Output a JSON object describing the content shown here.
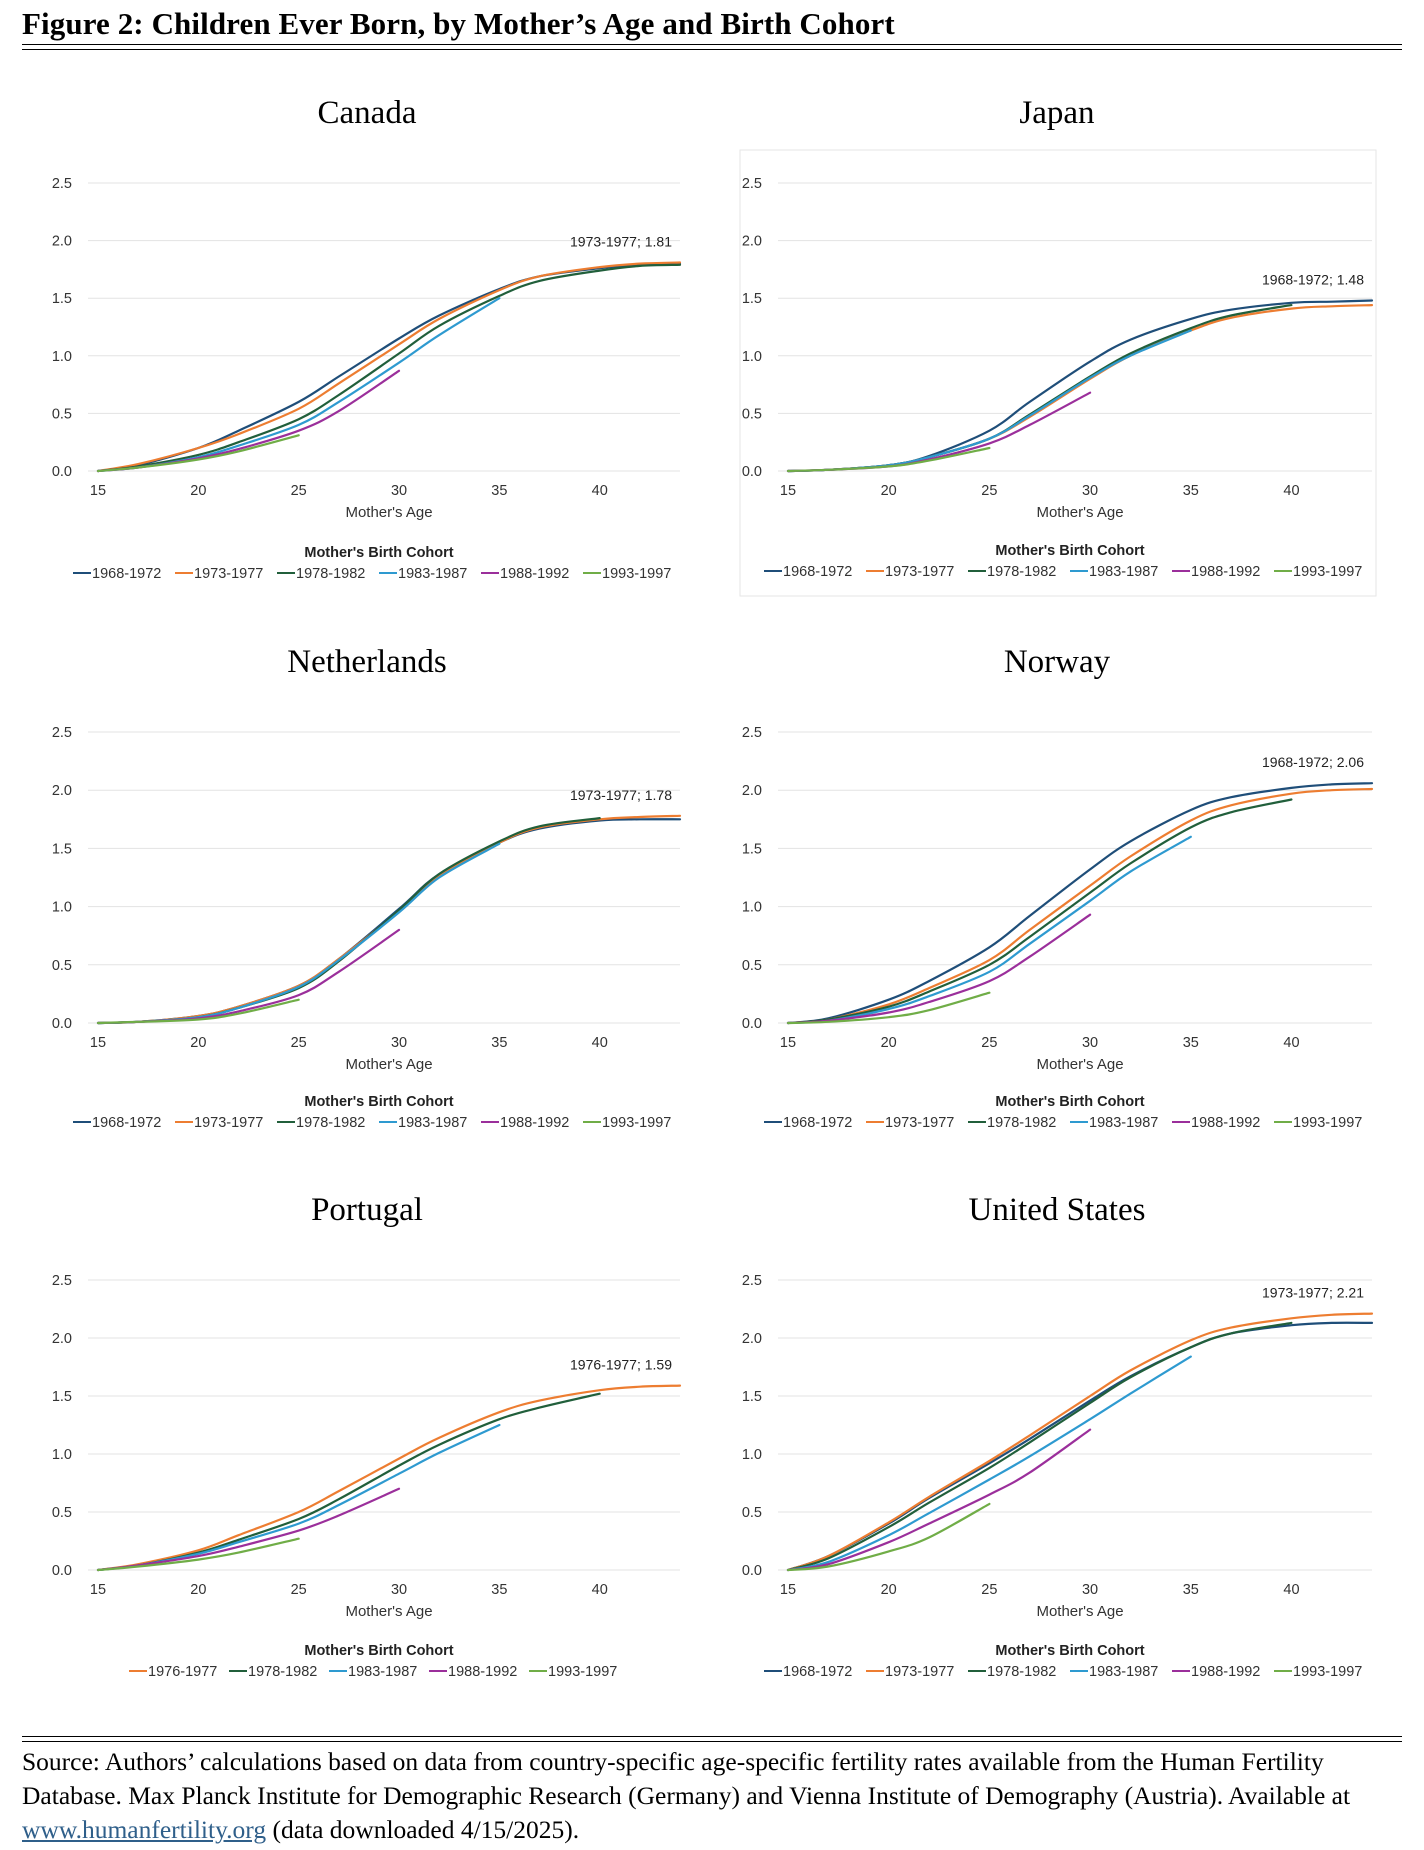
{
  "figure": {
    "title": "Figure 2: Children Ever Born, by Mother’s Age and Birth Cohort",
    "source_text": "Source: Authors’ calculations based on data from country-specific age-specific fertility rates available from the Human Fertility Database. Max Planck Institute for Demographic Research (Germany) and Vienna Institute of Demography (Austria). Available at",
    "source_link": "www.humanfertility.org",
    "source_tail": "(data downloaded 4/15/2025)."
  },
  "colors": {
    "1968-1972": "#1f4e79",
    "1973-1977": "#ed7d31",
    "1976-1977": "#ed7d31",
    "1978-1982": "#215f3b",
    "1983-1987": "#2e9ad0",
    "1988-1992": "#9b2f9b",
    "1993-1997": "#70ad47"
  },
  "chart_data": [
    {
      "type": "line",
      "title": "Canada",
      "xlabel": "Mother's Age",
      "ylabel": "",
      "xlim": [
        15,
        44
      ],
      "ylim": [
        0,
        2.5
      ],
      "x_ticks": [
        15,
        20,
        25,
        30,
        35,
        40
      ],
      "y_ticks": [
        "0.0",
        "0.5",
        "1.0",
        "1.5",
        "2.0",
        "2.5"
      ],
      "grid": true,
      "legend_title": "Mother's Birth Cohort",
      "legend_position": "bottom",
      "annotation": {
        "text": "1973-1977; 1.81",
        "x": 44,
        "y": 1.81
      },
      "series": [
        {
          "name": "1968-1972",
          "x": [
            15,
            17,
            20,
            22,
            25,
            27,
            30,
            32,
            35,
            37,
            40,
            42,
            44
          ],
          "y": [
            0,
            0.05,
            0.2,
            0.35,
            0.6,
            0.82,
            1.15,
            1.35,
            1.58,
            1.69,
            1.76,
            1.79,
            1.8
          ]
        },
        {
          "name": "1973-1977",
          "x": [
            15,
            17,
            20,
            22,
            25,
            27,
            30,
            32,
            35,
            37,
            40,
            42,
            44
          ],
          "y": [
            0,
            0.06,
            0.2,
            0.32,
            0.54,
            0.76,
            1.1,
            1.32,
            1.57,
            1.69,
            1.77,
            1.8,
            1.81
          ]
        },
        {
          "name": "1978-1982",
          "x": [
            15,
            17,
            20,
            22,
            25,
            27,
            30,
            32,
            35,
            37,
            40,
            42,
            44
          ],
          "y": [
            0,
            0.04,
            0.14,
            0.25,
            0.45,
            0.66,
            1.02,
            1.26,
            1.52,
            1.65,
            1.74,
            1.78,
            1.79
          ]
        },
        {
          "name": "1983-1987",
          "x": [
            15,
            17,
            20,
            22,
            25,
            27,
            30,
            32,
            35
          ],
          "y": [
            0,
            0.03,
            0.12,
            0.22,
            0.4,
            0.6,
            0.94,
            1.18,
            1.5
          ]
        },
        {
          "name": "1988-1992",
          "x": [
            15,
            17,
            20,
            22,
            25,
            27,
            30
          ],
          "y": [
            0,
            0.03,
            0.11,
            0.19,
            0.35,
            0.52,
            0.87
          ]
        },
        {
          "name": "1993-1997",
          "x": [
            15,
            17,
            20,
            22,
            25
          ],
          "y": [
            0,
            0.03,
            0.1,
            0.17,
            0.31
          ]
        }
      ]
    },
    {
      "type": "line",
      "title": "Japan",
      "xlabel": "Mother's Age",
      "ylabel": "",
      "xlim": [
        15,
        44
      ],
      "ylim": [
        0,
        2.5
      ],
      "x_ticks": [
        15,
        20,
        25,
        30,
        35,
        40
      ],
      "y_ticks": [
        "0.0",
        "0.5",
        "1.0",
        "1.5",
        "2.0",
        "2.5"
      ],
      "grid": true,
      "legend_title": "Mother's Birth Cohort",
      "legend_position": "bottom",
      "annotation": {
        "text": "1968-1972; 1.48",
        "x": 44,
        "y": 1.48
      },
      "series": [
        {
          "name": "1968-1972",
          "x": [
            15,
            17,
            20,
            22,
            25,
            27,
            30,
            32,
            35,
            37,
            40,
            42,
            44
          ],
          "y": [
            0,
            0.01,
            0.05,
            0.13,
            0.35,
            0.6,
            0.95,
            1.14,
            1.32,
            1.4,
            1.46,
            1.47,
            1.48
          ]
        },
        {
          "name": "1973-1977",
          "x": [
            15,
            17,
            20,
            22,
            25,
            27,
            30,
            32,
            35,
            37,
            40,
            42,
            44
          ],
          "y": [
            0,
            0.01,
            0.05,
            0.12,
            0.28,
            0.47,
            0.8,
            1.0,
            1.22,
            1.33,
            1.41,
            1.43,
            1.44
          ]
        },
        {
          "name": "1978-1982",
          "x": [
            15,
            17,
            20,
            22,
            25,
            27,
            30,
            32,
            35,
            37,
            40
          ],
          "y": [
            0,
            0.01,
            0.05,
            0.12,
            0.28,
            0.49,
            0.82,
            1.02,
            1.24,
            1.35,
            1.44
          ]
        },
        {
          "name": "1983-1987",
          "x": [
            15,
            17,
            20,
            22,
            25,
            27,
            30,
            32,
            35
          ],
          "y": [
            0,
            0.01,
            0.05,
            0.12,
            0.28,
            0.48,
            0.81,
            1.0,
            1.22
          ]
        },
        {
          "name": "1988-1992",
          "x": [
            15,
            17,
            20,
            22,
            25,
            27,
            30
          ],
          "y": [
            0,
            0.01,
            0.04,
            0.1,
            0.24,
            0.4,
            0.68
          ]
        },
        {
          "name": "1993-1997",
          "x": [
            15,
            17,
            20,
            22,
            25
          ],
          "y": [
            0,
            0.01,
            0.04,
            0.09,
            0.2
          ]
        }
      ]
    },
    {
      "type": "line",
      "title": "Netherlands",
      "xlabel": "Mother's Age",
      "ylabel": "",
      "xlim": [
        15,
        44
      ],
      "ylim": [
        0,
        2.5
      ],
      "x_ticks": [
        15,
        20,
        25,
        30,
        35,
        40
      ],
      "y_ticks": [
        "0.0",
        "0.5",
        "1.0",
        "1.5",
        "2.0",
        "2.5"
      ],
      "grid": true,
      "legend_title": "Mother's Birth Cohort",
      "legend_position": "bottom",
      "annotation": {
        "text": "1973-1977; 1.78",
        "x": 44,
        "y": 1.78
      },
      "series": [
        {
          "name": "1968-1972",
          "x": [
            15,
            17,
            20,
            22,
            25,
            27,
            30,
            32,
            35,
            37,
            40,
            42,
            44
          ],
          "y": [
            0,
            0.01,
            0.06,
            0.14,
            0.32,
            0.55,
            0.98,
            1.28,
            1.55,
            1.67,
            1.74,
            1.75,
            1.75
          ]
        },
        {
          "name": "1973-1977",
          "x": [
            15,
            17,
            20,
            22,
            25,
            27,
            30,
            32,
            35,
            37,
            40,
            42,
            44
          ],
          "y": [
            0,
            0.01,
            0.06,
            0.14,
            0.32,
            0.55,
            0.96,
            1.26,
            1.55,
            1.68,
            1.75,
            1.77,
            1.78
          ]
        },
        {
          "name": "1978-1982",
          "x": [
            15,
            17,
            20,
            22,
            25,
            27,
            30,
            32,
            35,
            37,
            40
          ],
          "y": [
            0,
            0.01,
            0.05,
            0.13,
            0.3,
            0.53,
            0.97,
            1.28,
            1.56,
            1.69,
            1.76
          ]
        },
        {
          "name": "1983-1987",
          "x": [
            15,
            17,
            20,
            22,
            25,
            27,
            30,
            32,
            35
          ],
          "y": [
            0,
            0.01,
            0.05,
            0.13,
            0.31,
            0.54,
            0.95,
            1.25,
            1.54
          ]
        },
        {
          "name": "1988-1992",
          "x": [
            15,
            17,
            20,
            22,
            25,
            27,
            30
          ],
          "y": [
            0,
            0.01,
            0.04,
            0.1,
            0.24,
            0.44,
            0.8
          ]
        },
        {
          "name": "1993-1997",
          "x": [
            15,
            17,
            20,
            22,
            25
          ],
          "y": [
            0,
            0.01,
            0.03,
            0.08,
            0.2
          ]
        }
      ]
    },
    {
      "type": "line",
      "title": "Norway",
      "xlabel": "Mother's Age",
      "ylabel": "",
      "xlim": [
        15,
        44
      ],
      "ylim": [
        0,
        2.5
      ],
      "x_ticks": [
        15,
        20,
        25,
        30,
        35,
        40
      ],
      "y_ticks": [
        "0.0",
        "0.5",
        "1.0",
        "1.5",
        "2.0",
        "2.5"
      ],
      "grid": true,
      "legend_title": "Mother's Birth Cohort",
      "legend_position": "bottom",
      "annotation": {
        "text": "1968-1972; 2.06",
        "x": 44,
        "y": 2.06
      },
      "series": [
        {
          "name": "1968-1972",
          "x": [
            15,
            17,
            20,
            22,
            25,
            27,
            30,
            32,
            35,
            37,
            40,
            42,
            44
          ],
          "y": [
            0,
            0.04,
            0.2,
            0.36,
            0.65,
            0.92,
            1.32,
            1.56,
            1.83,
            1.94,
            2.02,
            2.05,
            2.06
          ]
        },
        {
          "name": "1973-1977",
          "x": [
            15,
            17,
            20,
            22,
            25,
            27,
            30,
            32,
            35,
            37,
            40,
            42,
            44
          ],
          "y": [
            0,
            0.03,
            0.16,
            0.3,
            0.54,
            0.8,
            1.18,
            1.43,
            1.74,
            1.87,
            1.97,
            2.0,
            2.01
          ]
        },
        {
          "name": "1978-1982",
          "x": [
            15,
            17,
            20,
            22,
            25,
            27,
            30,
            32,
            35,
            37,
            40
          ],
          "y": [
            0,
            0.03,
            0.14,
            0.27,
            0.5,
            0.74,
            1.12,
            1.37,
            1.68,
            1.81,
            1.92
          ]
        },
        {
          "name": "1983-1987",
          "x": [
            15,
            17,
            20,
            22,
            25,
            27,
            30,
            32,
            35
          ],
          "y": [
            0,
            0.02,
            0.12,
            0.23,
            0.44,
            0.68,
            1.05,
            1.3,
            1.6
          ]
        },
        {
          "name": "1988-1992",
          "x": [
            15,
            17,
            20,
            22,
            25,
            27,
            30
          ],
          "y": [
            0,
            0.02,
            0.09,
            0.18,
            0.36,
            0.57,
            0.93
          ]
        },
        {
          "name": "1993-1997",
          "x": [
            15,
            17,
            20,
            22,
            25
          ],
          "y": [
            0,
            0.01,
            0.05,
            0.11,
            0.26
          ]
        }
      ]
    },
    {
      "type": "line",
      "title": "Portugal",
      "xlabel": "Mother's Age",
      "ylabel": "",
      "xlim": [
        15,
        44
      ],
      "ylim": [
        0,
        2.5
      ],
      "x_ticks": [
        15,
        20,
        25,
        30,
        35,
        40
      ],
      "y_ticks": [
        "0.0",
        "0.5",
        "1.0",
        "1.5",
        "2.0",
        "2.5"
      ],
      "grid": true,
      "legend_title": "Mother's Birth Cohort",
      "legend_position": "bottom",
      "annotation": {
        "text": "1976-1977; 1.59",
        "x": 44,
        "y": 1.59
      },
      "series": [
        {
          "name": "1976-1977",
          "x": [
            15,
            17,
            20,
            22,
            25,
            27,
            30,
            32,
            35,
            37,
            40,
            42,
            44
          ],
          "y": [
            0,
            0.05,
            0.17,
            0.3,
            0.5,
            0.68,
            0.96,
            1.14,
            1.36,
            1.46,
            1.55,
            1.58,
            1.59
          ]
        },
        {
          "name": "1978-1982",
          "x": [
            15,
            17,
            20,
            22,
            25,
            27,
            30,
            32,
            35,
            37,
            40
          ],
          "y": [
            0,
            0.04,
            0.15,
            0.26,
            0.44,
            0.61,
            0.9,
            1.08,
            1.3,
            1.4,
            1.52
          ]
        },
        {
          "name": "1983-1987",
          "x": [
            15,
            17,
            20,
            22,
            25,
            27,
            30,
            32,
            35
          ],
          "y": [
            0,
            0.04,
            0.14,
            0.24,
            0.4,
            0.56,
            0.83,
            1.01,
            1.25
          ]
        },
        {
          "name": "1988-1992",
          "x": [
            15,
            17,
            20,
            22,
            25,
            27,
            30
          ],
          "y": [
            0,
            0.04,
            0.12,
            0.2,
            0.34,
            0.47,
            0.7
          ]
        },
        {
          "name": "1993-1997",
          "x": [
            15,
            17,
            20,
            22,
            25
          ],
          "y": [
            0,
            0.03,
            0.09,
            0.15,
            0.27
          ]
        }
      ]
    },
    {
      "type": "line",
      "title": "United States",
      "xlabel": "Mother's Age",
      "ylabel": "",
      "xlim": [
        15,
        44
      ],
      "ylim": [
        0,
        2.5
      ],
      "x_ticks": [
        15,
        20,
        25,
        30,
        35,
        40
      ],
      "y_ticks": [
        "0.0",
        "0.5",
        "1.0",
        "1.5",
        "2.0",
        "2.5"
      ],
      "grid": true,
      "legend_title": "Mother's Birth Cohort",
      "legend_position": "bottom",
      "annotation": {
        "text": "1973-1977; 2.21",
        "x": 44,
        "y": 2.21
      },
      "series": [
        {
          "name": "1968-1972",
          "x": [
            15,
            17,
            20,
            22,
            25,
            27,
            30,
            32,
            35,
            37,
            40,
            42,
            44
          ],
          "y": [
            0,
            0.12,
            0.4,
            0.62,
            0.92,
            1.13,
            1.46,
            1.67,
            1.92,
            2.04,
            2.11,
            2.13,
            2.13
          ]
        },
        {
          "name": "1973-1977",
          "x": [
            15,
            17,
            20,
            22,
            25,
            27,
            30,
            32,
            35,
            37,
            40,
            42,
            44
          ],
          "y": [
            0,
            0.12,
            0.41,
            0.63,
            0.94,
            1.16,
            1.5,
            1.72,
            1.98,
            2.09,
            2.17,
            2.2,
            2.21
          ]
        },
        {
          "name": "1978-1982",
          "x": [
            15,
            17,
            20,
            22,
            25,
            27,
            30,
            32,
            35,
            37,
            40
          ],
          "y": [
            0,
            0.1,
            0.37,
            0.58,
            0.88,
            1.1,
            1.44,
            1.66,
            1.92,
            2.04,
            2.13
          ]
        },
        {
          "name": "1983-1987",
          "x": [
            15,
            17,
            20,
            22,
            25,
            27,
            30,
            32,
            35
          ],
          "y": [
            0,
            0.07,
            0.3,
            0.49,
            0.78,
            0.98,
            1.3,
            1.52,
            1.84
          ]
        },
        {
          "name": "1988-1992",
          "x": [
            15,
            17,
            20,
            22,
            25,
            27,
            30
          ],
          "y": [
            0,
            0.05,
            0.24,
            0.4,
            0.65,
            0.84,
            1.21
          ]
        },
        {
          "name": "1993-1997",
          "x": [
            15,
            17,
            20,
            22,
            25
          ],
          "y": [
            0,
            0.03,
            0.16,
            0.28,
            0.57
          ]
        }
      ]
    }
  ]
}
